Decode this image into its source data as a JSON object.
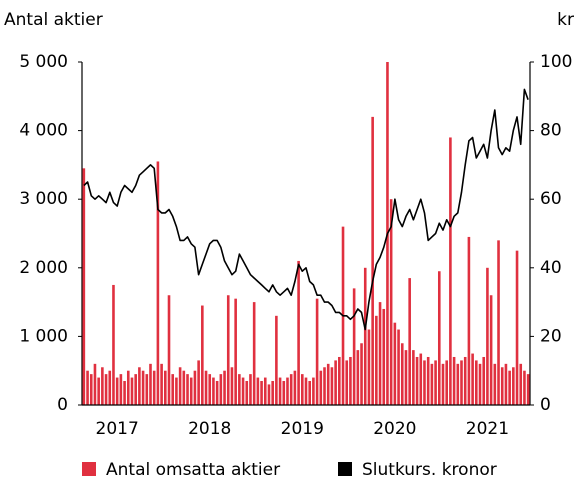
{
  "chart_data": {
    "type": "combo",
    "y_axis_label": "Antal aktier",
    "y2_axis_label": "kr",
    "x": [
      2016.64,
      2016.68,
      2016.72,
      2016.76,
      2016.8,
      2016.84,
      2016.88,
      2016.92,
      2016.96,
      2017.0,
      2017.04,
      2017.08,
      2017.12,
      2017.16,
      2017.2,
      2017.24,
      2017.28,
      2017.32,
      2017.36,
      2017.4,
      2017.44,
      2017.48,
      2017.52,
      2017.56,
      2017.6,
      2017.64,
      2017.68,
      2017.72,
      2017.76,
      2017.8,
      2017.84,
      2017.88,
      2017.92,
      2017.96,
      2018.0,
      2018.04,
      2018.08,
      2018.12,
      2018.16,
      2018.2,
      2018.24,
      2018.28,
      2018.32,
      2018.36,
      2018.4,
      2018.44,
      2018.48,
      2018.52,
      2018.56,
      2018.6,
      2018.64,
      2018.68,
      2018.72,
      2018.76,
      2018.8,
      2018.84,
      2018.88,
      2018.92,
      2018.96,
      2019.0,
      2019.04,
      2019.08,
      2019.12,
      2019.16,
      2019.2,
      2019.24,
      2019.28,
      2019.32,
      2019.36,
      2019.4,
      2019.44,
      2019.48,
      2019.52,
      2019.56,
      2019.6,
      2019.64,
      2019.68,
      2019.72,
      2019.76,
      2019.8,
      2019.84,
      2019.88,
      2019.92,
      2019.96,
      2020.0,
      2020.04,
      2020.08,
      2020.12,
      2020.16,
      2020.2,
      2020.24,
      2020.28,
      2020.32,
      2020.36,
      2020.4,
      2020.44,
      2020.48,
      2020.52,
      2020.56,
      2020.6,
      2020.64,
      2020.68,
      2020.72,
      2020.76,
      2020.8,
      2020.84,
      2020.88,
      2020.92,
      2020.96,
      2021.0,
      2021.04,
      2021.08,
      2021.12,
      2021.16,
      2021.2,
      2021.24,
      2021.28,
      2021.32,
      2021.36,
      2021.4,
      2021.44
    ],
    "series": [
      {
        "name": "Antal omsatta aktier",
        "color": "#e0303f",
        "type": "bar",
        "values": [
          3450,
          500,
          450,
          600,
          400,
          550,
          450,
          500,
          1750,
          400,
          450,
          350,
          500,
          400,
          450,
          550,
          500,
          450,
          600,
          500,
          3550,
          600,
          500,
          1600,
          450,
          400,
          550,
          500,
          450,
          400,
          500,
          650,
          1450,
          500,
          450,
          400,
          350,
          450,
          500,
          1600,
          550,
          1550,
          450,
          400,
          350,
          450,
          1500,
          400,
          350,
          400,
          300,
          350,
          1300,
          400,
          350,
          400,
          450,
          500,
          2100,
          450,
          400,
          350,
          400,
          1550,
          500,
          550,
          600,
          550,
          650,
          700,
          2600,
          650,
          700,
          1700,
          800,
          900,
          2000,
          1100,
          4200,
          1300,
          1500,
          1400,
          5000,
          3000,
          1200,
          1100,
          900,
          800,
          1850,
          800,
          700,
          750,
          650,
          700,
          600,
          650,
          1950,
          600,
          650,
          3900,
          700,
          600,
          650,
          700,
          2450,
          750,
          650,
          600,
          700,
          2000,
          1600,
          600,
          2400,
          550,
          600,
          500,
          550,
          2250,
          600,
          500,
          450
        ]
      },
      {
        "name": "Slutkurs. kronor",
        "color": "#000000",
        "type": "line",
        "axis": "y2",
        "values": [
          64,
          65,
          61,
          60,
          61,
          60,
          59,
          62,
          59,
          58,
          62,
          64,
          63,
          62,
          64,
          67,
          68,
          69,
          70,
          69,
          57,
          56,
          56,
          57,
          55,
          52,
          48,
          48,
          49,
          47,
          46,
          38,
          41,
          44,
          47,
          48,
          48,
          46,
          42,
          40,
          38,
          39,
          44,
          42,
          40,
          38,
          37,
          36,
          35,
          34,
          33,
          35,
          33,
          32,
          33,
          34,
          32,
          36,
          41,
          39,
          40,
          36,
          35,
          32,
          32,
          30,
          30,
          29,
          27,
          27,
          26,
          26,
          25,
          26,
          28,
          27,
          22,
          30,
          36,
          41,
          43,
          46,
          50,
          52,
          60,
          54,
          52,
          55,
          57,
          54,
          57,
          60,
          56,
          48,
          49,
          50,
          53,
          51,
          54,
          52,
          55,
          56,
          62,
          70,
          77,
          78,
          72,
          74,
          76,
          72,
          80,
          86,
          75,
          73,
          75,
          74,
          80,
          84,
          76,
          92,
          89
        ]
      }
    ],
    "xlim": [
      2016.62,
      2021.46
    ],
    "xticks": [
      2017,
      2018,
      2019,
      2020,
      2021
    ],
    "ylim": [
      0,
      5000
    ],
    "yticks": [
      0,
      {
        "value": 1000,
        "label": "1 000"
      },
      {
        "value": 2000,
        "label": "2 000"
      },
      {
        "value": 3000,
        "label": "3 000"
      },
      {
        "value": 4000,
        "label": "4 000"
      },
      {
        "value": 5000,
        "label": "5 000"
      }
    ],
    "y2lim": [
      0,
      100
    ],
    "y2ticks": [
      0,
      20,
      40,
      60,
      80,
      100
    ],
    "grid": false,
    "legend": "bottom"
  }
}
